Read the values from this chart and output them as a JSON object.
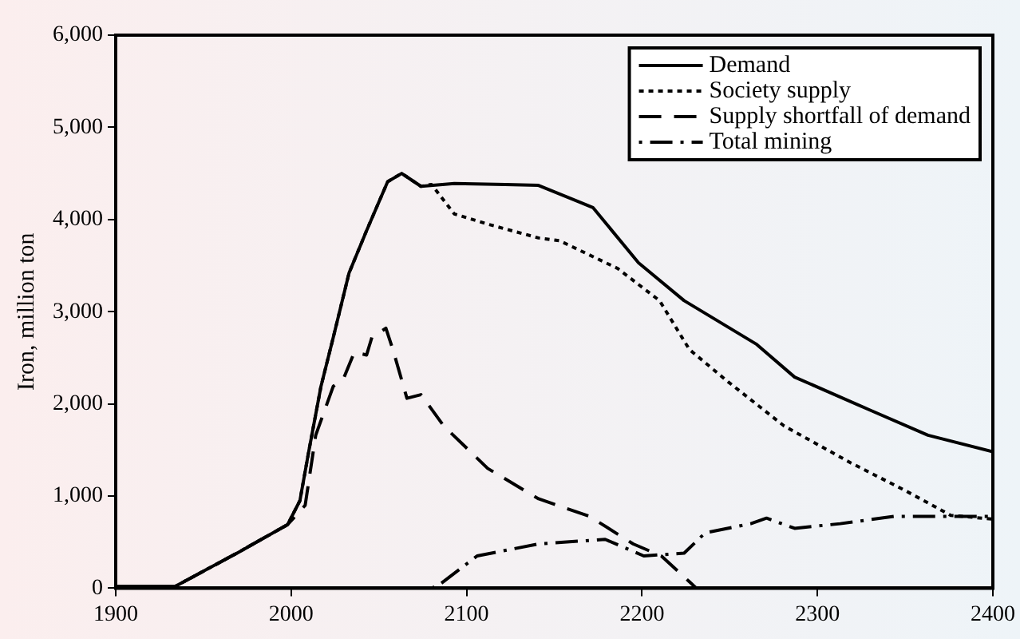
{
  "chart_data": {
    "type": "line",
    "ylabel": "Iron, million ton",
    "xlim": [
      1900,
      2400
    ],
    "xticks": [
      1900,
      2000,
      2100,
      2200,
      2300,
      2400
    ],
    "ylim": [
      0,
      6000
    ],
    "yticks": [
      0,
      {
        "value": 1000,
        "label": "1,000"
      },
      {
        "value": 2000,
        "label": "2,000"
      },
      {
        "value": 3000,
        "label": "3,000"
      },
      {
        "value": 4000,
        "label": "4,000"
      },
      {
        "value": 5000,
        "label": "5,000"
      },
      {
        "value": 6000,
        "label": "6,000"
      }
    ],
    "grid": false,
    "legend": "top right",
    "marker": "none",
    "series": [
      {
        "name": "Demand",
        "color": "#000000",
        "line_style": "solid",
        "x": [
          1900,
          1934,
          1970,
          1998,
          2005,
          2010,
          2017,
          2024,
          2033,
          2043,
          2055,
          2063,
          2074,
          2093,
          2122,
          2141,
          2172,
          2198,
          2224,
          2265,
          2287,
          2329,
          2363,
          2400
        ],
        "values": [
          20,
          20,
          390,
          690,
          950,
          1480,
          2190,
          2720,
          3420,
          3880,
          4410,
          4500,
          4360,
          4390,
          4380,
          4370,
          4130,
          3530,
          3120,
          2650,
          2290,
          1940,
          1660,
          1480
        ]
      },
      {
        "name": "Society supply",
        "color": "#000000",
        "line_style": "dotted",
        "x": [
          1900,
          1934,
          1970,
          1998,
          2005,
          2010,
          2017,
          2024,
          2033,
          2043,
          2055,
          2063,
          2074,
          2080,
          2093,
          2112,
          2141,
          2153,
          2186,
          2210,
          2227,
          2249,
          2281,
          2319,
          2350,
          2376,
          2400
        ],
        "values": [
          20,
          20,
          390,
          690,
          950,
          1480,
          2190,
          2720,
          3420,
          3880,
          4410,
          4500,
          4360,
          4380,
          4060,
          3950,
          3800,
          3770,
          3470,
          3120,
          2590,
          2240,
          1760,
          1360,
          1060,
          790,
          750
        ]
      },
      {
        "name": "Supply shortfall of demand",
        "color": "#000000",
        "line_style": "dashed",
        "x": [
          1900,
          1934,
          1970,
          1998,
          2008,
          2014,
          2024,
          2030,
          2036,
          2043,
          2046,
          2054,
          2058,
          2066,
          2074,
          2087,
          2112,
          2141,
          2170,
          2195,
          2211,
          2227,
          2231
        ],
        "values": [
          20,
          20,
          390,
          690,
          900,
          1660,
          2190,
          2280,
          2560,
          2530,
          2720,
          2820,
          2590,
          2060,
          2100,
          1760,
          1300,
          970,
          780,
          480,
          350,
          70,
          0
        ]
      },
      {
        "name": "Total mining",
        "color": "#000000",
        "line_style": "dashdot",
        "x": [
          2080,
          2084,
          2106,
          2141,
          2179,
          2201,
          2224,
          2236,
          2262,
          2271,
          2287,
          2313,
          2344,
          2400
        ],
        "values": [
          0,
          30,
          350,
          480,
          530,
          350,
          380,
          600,
          700,
          760,
          650,
          700,
          780,
          780
        ]
      }
    ]
  }
}
